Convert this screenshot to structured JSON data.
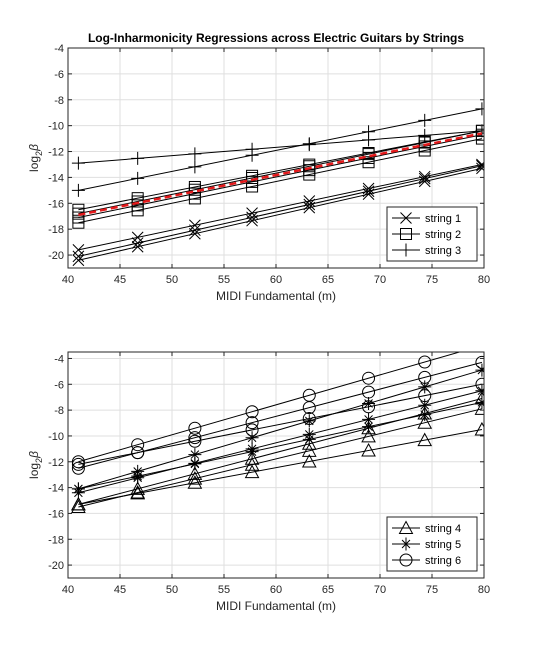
{
  "chart_data": [
    {
      "type": "line",
      "title": "Log-Inharmonicity Regressions across Electric Guitars by Strings",
      "xlabel": "MIDI Fundamental (m)",
      "ylabel_base": "log",
      "ylabel_sub": "2",
      "ylabel_sym": "β",
      "xlim": [
        40,
        80
      ],
      "ylim": [
        -21,
        -4
      ],
      "xticks": [
        40,
        45,
        50,
        55,
        60,
        65,
        70,
        75,
        80
      ],
      "yticks": [
        -4,
        -6,
        -8,
        -10,
        -12,
        -14,
        -16,
        -18,
        -20
      ],
      "grid": true,
      "legend": "bottom-right",
      "marker_x": [
        41,
        46.7,
        52.2,
        57.7,
        63.2,
        68.9,
        74.3,
        79.8
      ],
      "series": [
        {
          "name": "string 1",
          "marker": "x",
          "show_in_legend": true,
          "lines": [
            [
              -19.6,
              -13.0
            ],
            [
              -20.1,
              -13.1
            ],
            [
              -20.4,
              -13.3
            ]
          ]
        },
        {
          "name": "string 2",
          "marker": "square",
          "show_in_legend": true,
          "lines": [
            [
              -16.8,
              -10.4
            ],
            [
              -17.1,
              -10.7
            ],
            [
              -17.5,
              -11.0
            ],
            [
              -16.5,
              -10.4
            ]
          ]
        },
        {
          "name": "string 3",
          "marker": "plus",
          "show_in_legend": true,
          "lines": [
            [
              -15.0,
              -8.7
            ],
            [
              -12.9,
              -10.4
            ]
          ]
        },
        {
          "name": "",
          "marker": "none",
          "dashed": true,
          "color": "#e41a1c",
          "show_in_legend": false,
          "lines": [
            [
              -16.9,
              -10.6
            ]
          ]
        }
      ]
    },
    {
      "type": "line",
      "title": "",
      "xlabel": "MIDI Fundamental (m)",
      "ylabel_base": "log",
      "ylabel_sub": "2",
      "ylabel_sym": "β",
      "xlim": [
        40,
        80
      ],
      "ylim": [
        -21,
        -3.5
      ],
      "xticks": [
        40,
        45,
        50,
        55,
        60,
        65,
        70,
        75,
        80
      ],
      "yticks": [
        -4,
        -6,
        -8,
        -10,
        -12,
        -14,
        -16,
        -18,
        -20
      ],
      "grid": true,
      "legend": "bottom-right",
      "marker_x": [
        41,
        46.7,
        52.2,
        57.7,
        63.2,
        68.9,
        74.3,
        79.8
      ],
      "series": [
        {
          "name": "string 4",
          "marker": "triangle",
          "show_in_legend": true,
          "lines": [
            [
              -15.3,
              -9.5
            ],
            [
              -15.5,
              -7.9
            ],
            [
              -15.3,
              -7.1
            ]
          ]
        },
        {
          "name": "string 5",
          "marker": "asterisk",
          "show_in_legend": true,
          "lines": [
            [
              -14.1,
              -7.4
            ],
            [
              -14.4,
              -6.5
            ],
            [
              -14.1,
              -4.9
            ]
          ]
        },
        {
          "name": "string 6",
          "marker": "circle",
          "show_in_legend": true,
          "lines": [
            [
              -12.2,
              -6.0
            ],
            [
              -12.5,
              -4.3
            ],
            [
              -12.0,
              -3.0
            ]
          ]
        }
      ]
    }
  ]
}
